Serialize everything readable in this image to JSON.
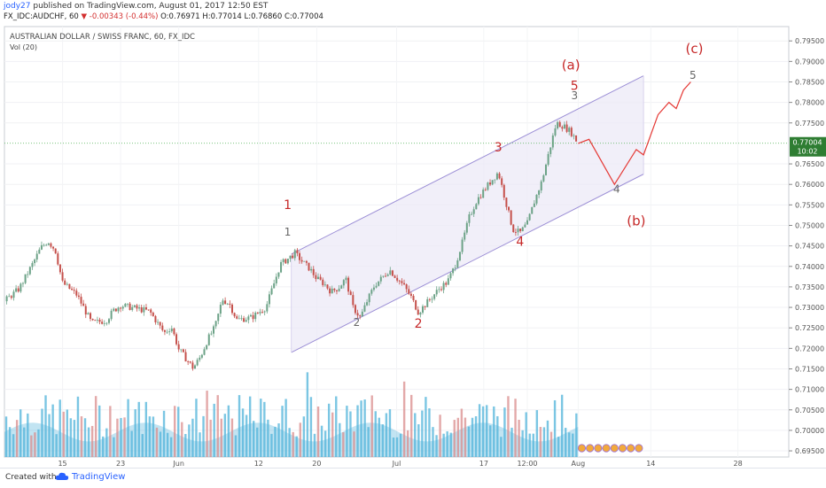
{
  "header": {
    "user": "jody27",
    "published": "published on TradingView.com, August 01, 2017 12:50 EST",
    "symbol": "FX_IDC:AUDCHF, 60",
    "change": "-0.00343 (-0.44%)",
    "ohlc": "O:0.76971 H:0.77014 L:0.76860 C:0.77004"
  },
  "footer": {
    "created_with": "Created with",
    "brand": "TradingView"
  },
  "colors": {
    "channel_line": "#9c8fd6",
    "channel_fill": "#ece9f7",
    "up_candle": "#6ca287",
    "down_candle": "#c5504b",
    "volume": "#4fb3d9",
    "label_red": "#c62828",
    "label_gray": "#666666",
    "last_price_bg": "#2e7d32",
    "projection": "#e53935"
  },
  "chart_data": {
    "type": "candlestick",
    "title": "AUSTRALIAN DOLLAR / SWISS FRANC, 60, FX_IDC",
    "indicator": "Vol (20)",
    "y_ticks": [
      "0.79500",
      "0.79000",
      "0.78500",
      "0.78000",
      "0.77500",
      "0.77004",
      "0.76500",
      "0.76000",
      "0.75500",
      "0.75000",
      "0.74500",
      "0.74000",
      "0.73500",
      "0.73000",
      "0.72500",
      "0.72000",
      "0.71500",
      "0.71000",
      "0.70500",
      "0.70000",
      "0.69500"
    ],
    "ylim": [
      0.6935,
      0.7985
    ],
    "last_price": "0.77004",
    "countdown": "10:02",
    "x_ticks": [
      {
        "label": "15",
        "t": 8
      },
      {
        "label": "23",
        "t": 16
      },
      {
        "label": "Jun",
        "t": 24
      },
      {
        "label": "12",
        "t": 35
      },
      {
        "label": "20",
        "t": 43
      },
      {
        "label": "Jul",
        "t": 54
      },
      {
        "label": "17",
        "t": 66
      },
      {
        "label": "12:00",
        "t": 72
      },
      {
        "label": "Aug",
        "t": 79
      },
      {
        "label": "14",
        "t": 89
      },
      {
        "label": "28",
        "t": 101
      }
    ],
    "price_path": [
      [
        0,
        0.7315
      ],
      [
        2,
        0.7345
      ],
      [
        4,
        0.741
      ],
      [
        5,
        0.7445
      ],
      [
        6,
        0.7462
      ],
      [
        7,
        0.744
      ],
      [
        8,
        0.736
      ],
      [
        10,
        0.733
      ],
      [
        12,
        0.7262
      ],
      [
        14,
        0.7268
      ],
      [
        15,
        0.7292
      ],
      [
        16,
        0.7305
      ],
      [
        18,
        0.7298
      ],
      [
        20,
        0.729
      ],
      [
        22,
        0.7238
      ],
      [
        23,
        0.7252
      ],
      [
        24,
        0.7198
      ],
      [
        26,
        0.7152
      ],
      [
        27,
        0.718
      ],
      [
        28,
        0.7222
      ],
      [
        29,
        0.7252
      ],
      [
        30,
        0.732
      ],
      [
        31,
        0.7308
      ],
      [
        32,
        0.727
      ],
      [
        34,
        0.7275
      ],
      [
        36,
        0.73
      ],
      [
        37,
        0.7352
      ],
      [
        38,
        0.7405
      ],
      [
        39,
        0.7418
      ],
      [
        40,
        0.7432
      ],
      [
        41,
        0.7412
      ],
      [
        42,
        0.7395
      ],
      [
        43,
        0.737
      ],
      [
        44,
        0.7358
      ],
      [
        45,
        0.7338
      ],
      [
        46,
        0.7348
      ],
      [
        47,
        0.737
      ],
      [
        48,
        0.73
      ],
      [
        49,
        0.7275
      ],
      [
        50,
        0.7318
      ],
      [
        51,
        0.7355
      ],
      [
        52,
        0.7372
      ],
      [
        53,
        0.7392
      ],
      [
        54,
        0.7372
      ],
      [
        55,
        0.7352
      ],
      [
        56,
        0.7325
      ],
      [
        57,
        0.7288
      ],
      [
        58,
        0.7308
      ],
      [
        59,
        0.7328
      ],
      [
        60,
        0.7348
      ],
      [
        61,
        0.7362
      ],
      [
        62,
        0.74
      ],
      [
        63,
        0.7455
      ],
      [
        64,
        0.752
      ],
      [
        65,
        0.756
      ],
      [
        66,
        0.7585
      ],
      [
        67,
        0.7608
      ],
      [
        68,
        0.763
      ],
      [
        69,
        0.756
      ],
      [
        70,
        0.749
      ],
      [
        71,
        0.7482
      ],
      [
        72,
        0.7505
      ],
      [
        73,
        0.756
      ],
      [
        74,
        0.7608
      ],
      [
        75,
        0.768
      ],
      [
        76,
        0.775
      ],
      [
        77,
        0.7742
      ],
      [
        78,
        0.7728
      ],
      [
        79,
        0.77
      ]
    ],
    "volume": {
      "count": 160,
      "t_start": 0,
      "t_end": 79
    },
    "channel": {
      "upper": [
        [
          39.5,
          0.743
        ],
        [
          88,
          0.7865
        ]
      ],
      "lower": [
        [
          39.5,
          0.719
        ],
        [
          88,
          0.7625
        ]
      ],
      "fill_end_t": 88
    },
    "projection_path": [
      [
        79,
        0.77
      ],
      [
        80.5,
        0.771
      ],
      [
        84,
        0.76
      ],
      [
        87,
        0.7685
      ],
      [
        88,
        0.7672
      ],
      [
        90,
        0.777
      ],
      [
        91.5,
        0.78
      ],
      [
        92.5,
        0.7785
      ],
      [
        93.5,
        0.783
      ],
      [
        94.5,
        0.785
      ]
    ],
    "wave_labels": [
      {
        "text": "1",
        "color": "red",
        "t": 39,
        "v": 0.754,
        "size": 14
      },
      {
        "text": "1",
        "color": "gray",
        "t": 39,
        "v": 0.7475,
        "size": 12
      },
      {
        "text": "2",
        "color": "gray",
        "t": 48.5,
        "v": 0.7255,
        "size": 12
      },
      {
        "text": "2",
        "color": "red",
        "t": 57,
        "v": 0.725,
        "size": 14
      },
      {
        "text": "3",
        "color": "red",
        "t": 68,
        "v": 0.768,
        "size": 14
      },
      {
        "text": "4",
        "color": "red",
        "t": 71,
        "v": 0.745,
        "size": 14
      },
      {
        "text": "5",
        "color": "red",
        "t": 78.5,
        "v": 0.783,
        "size": 14
      },
      {
        "text": "3",
        "color": "gray",
        "t": 78.5,
        "v": 0.7808,
        "size": 12
      },
      {
        "text": "(a)",
        "color": "red",
        "t": 78,
        "v": 0.788,
        "size": 15
      },
      {
        "text": "4",
        "color": "gray",
        "t": 84.3,
        "v": 0.758,
        "size": 12
      },
      {
        "text": "(b)",
        "color": "red",
        "t": 87,
        "v": 0.75,
        "size": 15
      },
      {
        "text": "5",
        "color": "gray",
        "t": 94.8,
        "v": 0.7858,
        "size": 12
      },
      {
        "text": "(c)",
        "color": "red",
        "t": 95,
        "v": 0.792,
        "size": 15
      }
    ]
  }
}
